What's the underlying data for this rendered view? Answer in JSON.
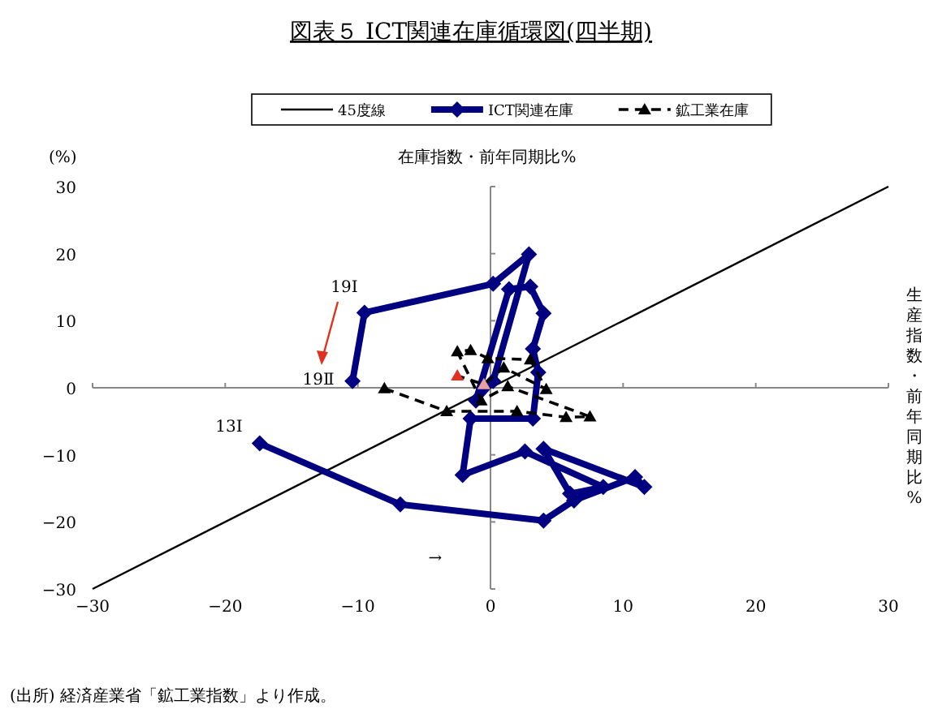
{
  "chart_data": {
    "type": "line",
    "title": "図表５ ICT関連在庫循環図(四半期)",
    "xlabel": "生産指数・前年同期比%",
    "ylabel": "在庫指数・前年同期比%",
    "xlim": [
      -30,
      30
    ],
    "ylim": [
      -30,
      30
    ],
    "xticks": [
      -30,
      -20,
      -10,
      0,
      10,
      20,
      30
    ],
    "yticks": [
      -30,
      -20,
      -10,
      0,
      10,
      20,
      30
    ],
    "legend": "top",
    "series": [
      {
        "name": "45度線",
        "color": "#000000",
        "marker": "none",
        "line_style": "solid",
        "x": [
          -30,
          30
        ],
        "values": [
          -30,
          30
        ]
      },
      {
        "name": "ICT関連在庫",
        "color": "#000080",
        "marker": "diamond",
        "line_style": "solid",
        "x": [
          -17.4,
          -6.8,
          4.0,
          6.3,
          10.9,
          11.6,
          4.0,
          6.0,
          8.5,
          2.6,
          -2.1,
          -1.5,
          3.2,
          3.6,
          3.2,
          4.0,
          3.0,
          1.4,
          -1.1,
          0.2,
          2.9,
          0.2,
          -9.5,
          -10.4
        ],
        "values": [
          -8.3,
          -17.4,
          -19.8,
          -16.8,
          -13.3,
          -14.8,
          -9.1,
          -15.8,
          -14.8,
          -9.5,
          -13.0,
          -4.6,
          -4.6,
          2.3,
          5.8,
          11.1,
          15.1,
          14.7,
          -1.9,
          1.0,
          19.9,
          15.5,
          11.2,
          1.0
        ]
      },
      {
        "name": "鉱工業在庫",
        "color": "#000000",
        "marker": "triangle",
        "line_style": "dashed",
        "x": [
          -8.0,
          -3.3,
          2.0,
          5.7,
          7.5,
          1.3,
          -0.7,
          -2.5,
          -1.5,
          -0.2,
          3.0,
          4.2,
          1.0,
          -0.5,
          -2.5
        ],
        "values": [
          -0.1,
          -3.5,
          -3.5,
          -4.4,
          -4.3,
          0.2,
          -1.9,
          5.4,
          5.6,
          4.4,
          4.2,
          -0.2,
          3.0,
          0.5,
          1.8
        ],
        "colors": [
          "#000000",
          "#000000",
          "#000000",
          "#000000",
          "#000000",
          "#000000",
          "#000000",
          "#000000",
          "#000000",
          "#000000",
          "#000000",
          "#000000",
          "#000000",
          "#e8a0a0",
          "#e03020"
        ]
      }
    ],
    "annotations": [
      "19Ⅰ",
      "19Ⅱ",
      "13Ⅰ",
      "→",
      "(%)",
      "(出所) 経済産業省「鉱工業指数」より作成。"
    ]
  }
}
